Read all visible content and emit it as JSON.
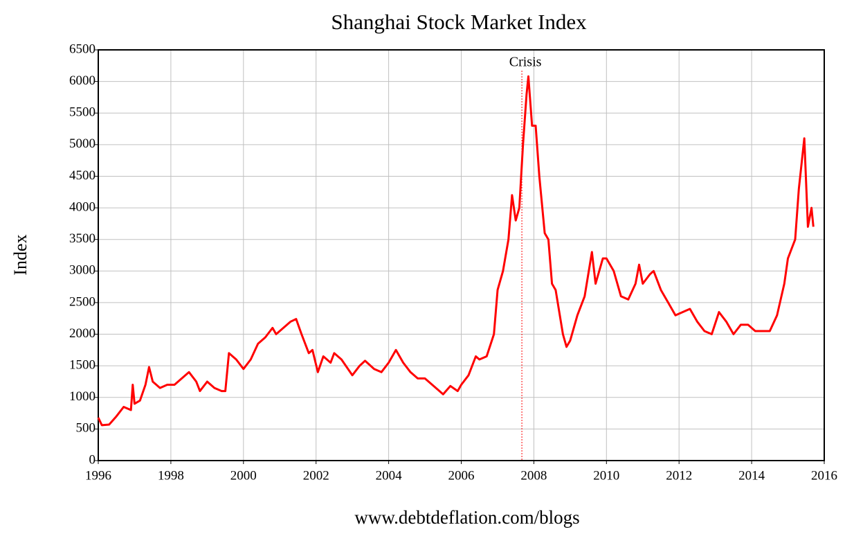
{
  "chart_data": {
    "type": "line",
    "title": "Shanghai Stock Market Index",
    "y_label": "Index",
    "source": "www.debtdeflation.com/blogs",
    "annotations": [
      {
        "text": "Crisis",
        "x": 2007.67
      }
    ],
    "x": [
      1996.0,
      1996.1,
      1996.3,
      1996.5,
      1996.7,
      1996.9,
      1996.95,
      1997.0,
      1997.15,
      1997.3,
      1997.4,
      1997.5,
      1997.7,
      1997.9,
      1998.1,
      1998.3,
      1998.5,
      1998.7,
      1998.8,
      1999.0,
      1999.2,
      1999.4,
      1999.5,
      1999.6,
      1999.8,
      2000.0,
      2000.2,
      2000.4,
      2000.6,
      2000.8,
      2000.9,
      2001.1,
      2001.3,
      2001.45,
      2001.6,
      2001.8,
      2001.9,
      2002.05,
      2002.2,
      2002.4,
      2002.5,
      2002.7,
      2003.0,
      2003.2,
      2003.35,
      2003.6,
      2003.8,
      2004.0,
      2004.2,
      2004.4,
      2004.6,
      2004.8,
      2005.0,
      2005.2,
      2005.4,
      2005.5,
      2005.7,
      2005.9,
      2006.0,
      2006.2,
      2006.4,
      2006.5,
      2006.7,
      2006.9,
      2007.0,
      2007.15,
      2007.3,
      2007.4,
      2007.5,
      2007.6,
      2007.7,
      2007.8,
      2007.85,
      2007.95,
      2008.05,
      2008.15,
      2008.3,
      2008.4,
      2008.5,
      2008.6,
      2008.8,
      2008.9,
      2009.0,
      2009.2,
      2009.4,
      2009.6,
      2009.7,
      2009.9,
      2010.0,
      2010.2,
      2010.4,
      2010.6,
      2010.8,
      2010.9,
      2011.0,
      2011.2,
      2011.3,
      2011.5,
      2011.7,
      2011.9,
      2012.1,
      2012.3,
      2012.5,
      2012.7,
      2012.9,
      2013.1,
      2013.3,
      2013.5,
      2013.7,
      2013.9,
      2014.1,
      2014.3,
      2014.5,
      2014.7,
      2014.9,
      2015.0,
      2015.2,
      2015.3,
      2015.45,
      2015.55,
      2015.65,
      2015.7
    ],
    "series": [
      {
        "name": "Shanghai",
        "color": "#ff0000",
        "values": [
          680,
          560,
          570,
          700,
          850,
          800,
          1200,
          900,
          950,
          1200,
          1480,
          1250,
          1150,
          1200,
          1200,
          1300,
          1400,
          1250,
          1100,
          1250,
          1150,
          1100,
          1100,
          1700,
          1600,
          1450,
          1600,
          1850,
          1950,
          2100,
          2000,
          2100,
          2200,
          2240,
          2000,
          1700,
          1750,
          1400,
          1650,
          1550,
          1700,
          1600,
          1350,
          1500,
          1580,
          1450,
          1400,
          1550,
          1750,
          1550,
          1400,
          1300,
          1300,
          1200,
          1100,
          1050,
          1180,
          1100,
          1200,
          1350,
          1650,
          1600,
          1650,
          2000,
          2700,
          3000,
          3500,
          4200,
          3800,
          4000,
          5000,
          5800,
          6080,
          5300,
          5300,
          4500,
          3600,
          3500,
          2800,
          2700,
          2000,
          1800,
          1900,
          2300,
          2600,
          3300,
          2800,
          3200,
          3200,
          3000,
          2600,
          2550,
          2800,
          3100,
          2800,
          2950,
          3000,
          2700,
          2500,
          2300,
          2350,
          2400,
          2200,
          2050,
          2000,
          2350,
          2200,
          2000,
          2150,
          2150,
          2050,
          2050,
          2050,
          2300,
          2800,
          3200,
          3500,
          4300,
          5100,
          3700,
          4000,
          3700
        ]
      }
    ],
    "xlim": [
      1996,
      2016
    ],
    "xticks": [
      1996,
      1998,
      2000,
      2002,
      2004,
      2006,
      2008,
      2010,
      2012,
      2014,
      2016
    ],
    "ylim": [
      0,
      6500
    ],
    "yticks": [
      0,
      500,
      1000,
      1500,
      2000,
      2500,
      3000,
      3500,
      4000,
      4500,
      5000,
      5500,
      6000,
      6500
    ],
    "grid": true
  }
}
